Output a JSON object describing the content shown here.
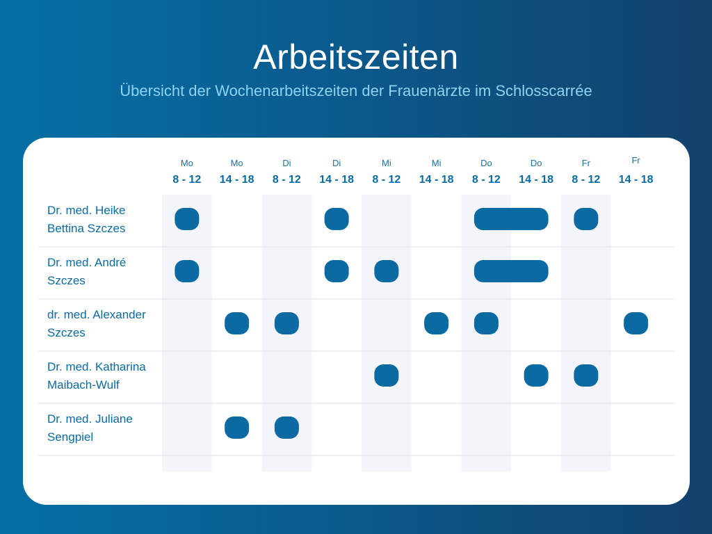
{
  "header": {
    "title": "Arbeitszeiten",
    "subtitle": "Übersicht der Wochenarbeitszeiten der Frauenärzte im Schlosscarrée"
  },
  "colors": {
    "background_left": "#0670a6",
    "background_right": "#12416b",
    "card": "#ffffff",
    "shaded_column": "#f4f5fb",
    "pill": "#0a6aa1",
    "text": "#0a6aa1",
    "subtitle": "#8fd3f0"
  },
  "chart_data": {
    "type": "table",
    "title": "Arbeitszeiten",
    "subtitle": "Übersicht der Wochenarbeitszeiten der Frauenärzte im Schlosscarrée",
    "columns": [
      {
        "day": "Mo",
        "time": "8 - 12"
      },
      {
        "day": "Mo",
        "time": "14 - 18"
      },
      {
        "day": "Di",
        "time": "8 - 12"
      },
      {
        "day": "Di",
        "time": "14 - 18"
      },
      {
        "day": "Mi",
        "time": "8 - 12"
      },
      {
        "day": "Mi",
        "time": "14 - 18"
      },
      {
        "day": "Do",
        "time": "8 - 12"
      },
      {
        "day": "Do",
        "time": "14 - 18"
      },
      {
        "day": "Fr",
        "time": "8 - 12"
      },
      {
        "day": "Fr",
        "time": "14 - 18"
      }
    ],
    "rows": [
      {
        "name_lines": [
          "Dr. med. Heike",
          "Bettina Szczes"
        ],
        "present": [
          1,
          0,
          0,
          1,
          0,
          0,
          1,
          1,
          1,
          0
        ]
      },
      {
        "name_lines": [
          "Dr. med. André",
          "Szczes"
        ],
        "present": [
          1,
          0,
          0,
          1,
          1,
          0,
          1,
          1,
          0,
          0
        ]
      },
      {
        "name_lines": [
          "dr. med. Alexander",
          "Szczes"
        ],
        "present": [
          0,
          1,
          1,
          0,
          0,
          1,
          1,
          0,
          0,
          1
        ]
      },
      {
        "name_lines": [
          "Dr. med. Katharina",
          "Maibach-Wulf"
        ],
        "present": [
          0,
          0,
          0,
          0,
          1,
          0,
          0,
          1,
          1,
          0
        ]
      },
      {
        "name_lines": [
          "Dr. med. Juliane",
          "Sengpiel"
        ],
        "present": [
          0,
          1,
          1,
          0,
          0,
          0,
          0,
          0,
          0,
          0
        ]
      }
    ],
    "shaded_columns": [
      0,
      2,
      4,
      6,
      8
    ]
  }
}
